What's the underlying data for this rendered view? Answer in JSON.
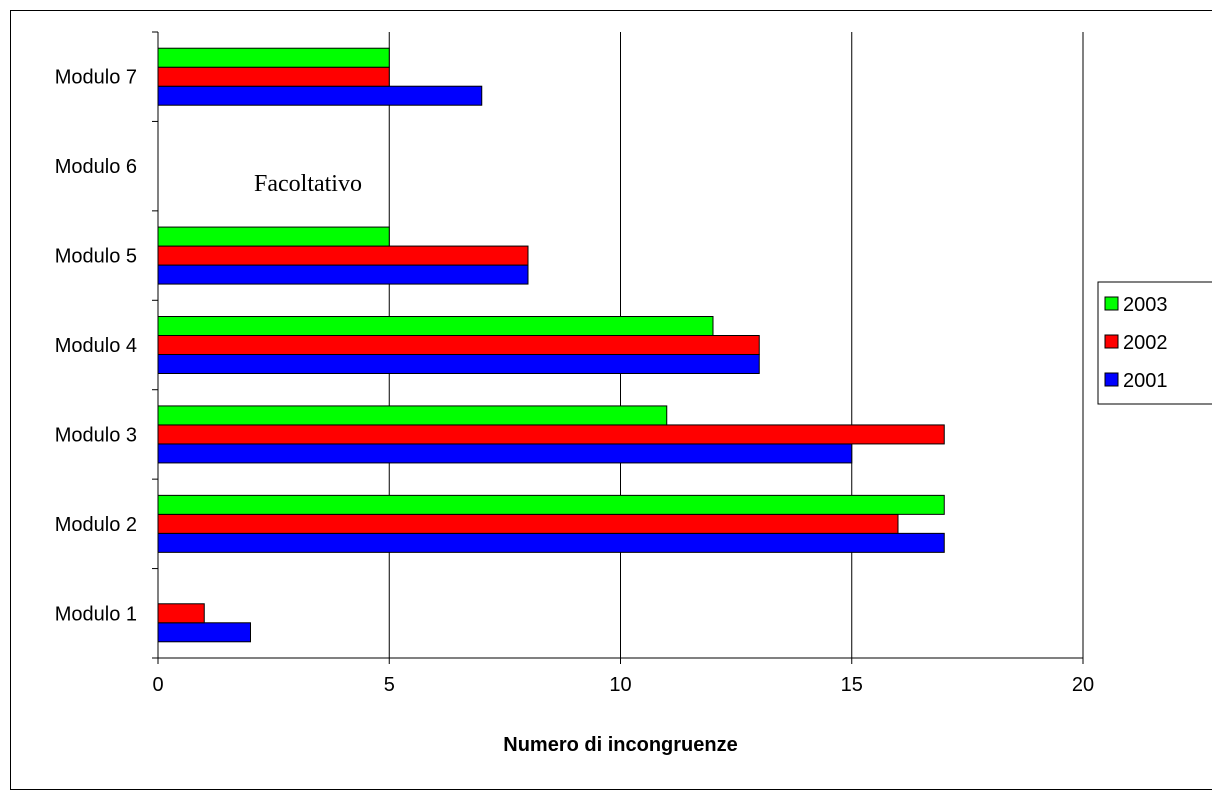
{
  "chart_data": {
    "type": "bar",
    "orientation": "horizontal",
    "categories": [
      "Modulo 1",
      "Modulo 2",
      "Modulo 3",
      "Modulo 4",
      "Modulo 5",
      "Modulo 6",
      "Modulo 7"
    ],
    "series": [
      {
        "name": "2001",
        "color": "#0000FF",
        "values": [
          2,
          17,
          15,
          13,
          8,
          null,
          7
        ]
      },
      {
        "name": "2002",
        "color": "#FF0000",
        "values": [
          1,
          16,
          17,
          13,
          8,
          null,
          5
        ]
      },
      {
        "name": "2003",
        "color": "#00FF00",
        "values": [
          null,
          17,
          11,
          12,
          5,
          null,
          5
        ]
      }
    ],
    "xlabel": "Numero di incongruenze",
    "ylabel": "",
    "xlim": [
      0,
      20
    ],
    "xticks": [
      0,
      5,
      10,
      15,
      20
    ],
    "grid": "vertical",
    "legend_position": "right",
    "annotations": [
      {
        "category": "Modulo 6",
        "text": "Facoltativo"
      }
    ]
  }
}
